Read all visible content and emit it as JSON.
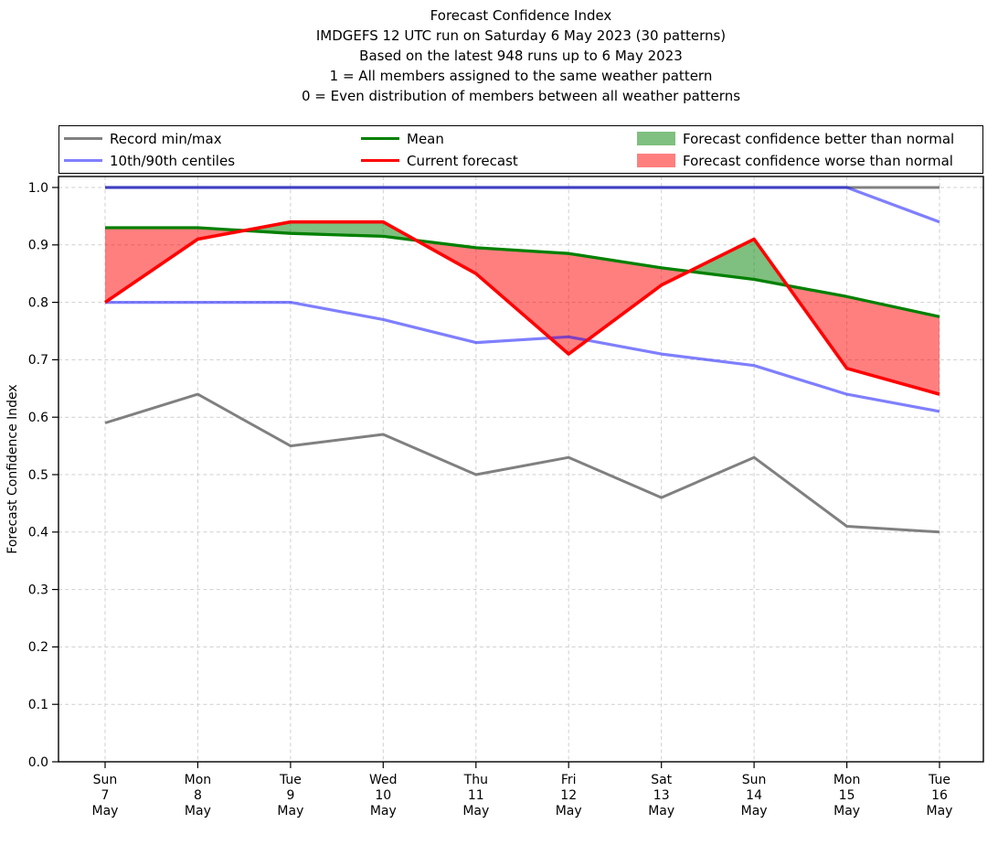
{
  "header": {
    "title_lines": [
      "Forecast Confidence Index",
      "IMDGEFS 12 UTC run on Saturday 6 May 2023 (30 patterns)",
      "Based on the latest 948 runs up to 6 May 2023",
      "1 = All members assigned to the same weather pattern",
      "0 = Even distribution of members between all weather patterns"
    ]
  },
  "legend": {
    "items": [
      {
        "label": "Record min/max",
        "swatch": "line",
        "color": "#808080"
      },
      {
        "label": "10th/90th centiles",
        "swatch": "line",
        "color": "#8080ff"
      },
      {
        "label": "Mean",
        "swatch": "line",
        "color": "#008000"
      },
      {
        "label": "Current forecast",
        "swatch": "line",
        "color": "#ff0000"
      },
      {
        "label": "Forecast confidence better than normal",
        "swatch": "patch",
        "color": "#7fbf7f"
      },
      {
        "label": "Forecast confidence worse than normal",
        "swatch": "patch",
        "color": "#ff7f7f"
      }
    ]
  },
  "chart_data": {
    "type": "line",
    "title": "Forecast Confidence Index",
    "xlabel": "",
    "ylabel": "Forecast Confidence Index",
    "ylim": [
      0.0,
      1.02
    ],
    "yticks": [
      0.0,
      0.1,
      0.2,
      0.3,
      0.4,
      0.5,
      0.6,
      0.7,
      0.8,
      0.9,
      1.0
    ],
    "grid": true,
    "legend_position": "top",
    "categories": [
      [
        "Sun",
        "7",
        "May"
      ],
      [
        "Mon",
        "8",
        "May"
      ],
      [
        "Tue",
        "9",
        "May"
      ],
      [
        "Wed",
        "10",
        "May"
      ],
      [
        "Thu",
        "11",
        "May"
      ],
      [
        "Fri",
        "12",
        "May"
      ],
      [
        "Sat",
        "13",
        "May"
      ],
      [
        "Sun",
        "14",
        "May"
      ],
      [
        "Mon",
        "15",
        "May"
      ],
      [
        "Tue",
        "16",
        "May"
      ]
    ],
    "series": [
      {
        "id": "record-min",
        "name": "Record min/max",
        "color": "#808080",
        "width": 3,
        "values": [
          0.59,
          0.64,
          0.55,
          0.57,
          0.5,
          0.53,
          0.46,
          0.53,
          0.41,
          0.4
        ]
      },
      {
        "id": "record-max",
        "name": "Record min/max",
        "color": "#808080",
        "width": 3,
        "values": [
          1.0,
          1.0,
          1.0,
          1.0,
          1.0,
          1.0,
          1.0,
          1.0,
          1.0,
          1.0
        ]
      },
      {
        "id": "centile-10th",
        "name": "10th/90th centiles",
        "color": "rgba(0,0,255,0.5)",
        "width": 3.2,
        "values": [
          0.8,
          0.8,
          0.8,
          0.77,
          0.73,
          0.74,
          0.71,
          0.69,
          0.64,
          0.61
        ]
      },
      {
        "id": "centile-90th",
        "name": "10th/90th centiles",
        "color": "rgba(0,0,255,0.5)",
        "width": 3.2,
        "values": [
          1.0,
          1.0,
          1.0,
          1.0,
          1.0,
          1.0,
          1.0,
          1.0,
          1.0,
          0.94
        ]
      },
      {
        "id": "mean",
        "name": "Mean",
        "color": "#008000",
        "width": 3.3,
        "values": [
          0.93,
          0.93,
          0.92,
          0.915,
          0.895,
          0.885,
          0.86,
          0.84,
          0.81,
          0.775
        ]
      },
      {
        "id": "forecast",
        "name": "Current forecast",
        "color": "#ff0000",
        "width": 3.6,
        "values": [
          0.8,
          0.91,
          0.94,
          0.94,
          0.85,
          0.71,
          0.83,
          0.91,
          0.685,
          0.64
        ]
      }
    ],
    "fills": [
      {
        "name": "Forecast confidence better than normal",
        "condition": "forecast above mean",
        "color": "rgba(0,128,0,0.5)"
      },
      {
        "name": "Forecast confidence worse than normal",
        "condition": "forecast below mean",
        "color": "rgba(255,0,0,0.5)"
      }
    ]
  }
}
